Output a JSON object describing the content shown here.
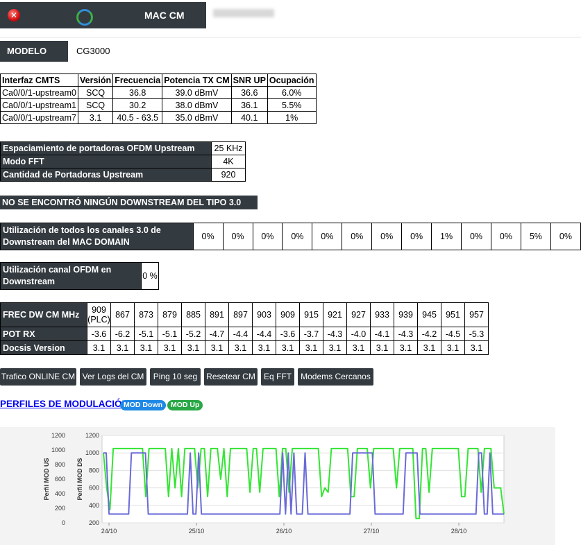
{
  "header": {
    "title": "MAC CM",
    "mac_value": ""
  },
  "modelo": {
    "label": "MODELO",
    "value": "CG3000"
  },
  "cmts_table": {
    "headers": [
      "Interfaz CMTS",
      "Versión",
      "Frecuencia",
      "Potencia TX CM",
      "SNR UP",
      "Ocupación"
    ],
    "rows": [
      [
        "Ca0/0/1-upstream0",
        "SCQ",
        "36.8",
        "39.0 dBmV",
        "36.6",
        "6.0%"
      ],
      [
        "Ca0/0/1-upstream1",
        "SCQ",
        "30.2",
        "38.0 dBmV",
        "36.1",
        "5.5%"
      ],
      [
        "Ca0/0/1-upstream7",
        "3.1",
        "40.5 - 63.5",
        "35.0 dBmV",
        "40.1",
        "1%"
      ]
    ]
  },
  "ofdm_upstream": [
    {
      "label": "Espaciamiento de portadoras OFDM Upstream",
      "value": "25 KHz"
    },
    {
      "label": "Modo FFT",
      "value": "4K"
    },
    {
      "label": "Cantidad de Portadoras Upstream",
      "value": "920"
    }
  ],
  "no_downstream_msg": "NO SE ENCONTRÓ NINGÚN DOWNSTREAM DEL TIPO 3.0",
  "util_ds30": {
    "label_line1": "Utilización de todos los canales 3.0 de",
    "label_line2": "Downstream del MAC DOMAIN",
    "values": [
      "0%",
      "0%",
      "0%",
      "0%",
      "0%",
      "0%",
      "0%",
      "0%",
      "1%",
      "0%",
      "0%",
      "5%",
      "0%"
    ]
  },
  "util_ofdm": {
    "label_line1": "Utilización canal OFDM en",
    "label_line2": "Downstream",
    "value": "0 %"
  },
  "freq_table": {
    "frec_label": "FREC DW CM MHz",
    "pot_label": "POT RX",
    "docsis_label": "Docsis Version",
    "first_freq": "909",
    "first_freq_note": "(PLC)",
    "freqs": [
      "867",
      "873",
      "879",
      "885",
      "891",
      "897",
      "903",
      "909",
      "915",
      "921",
      "927",
      "933",
      "939",
      "945",
      "951",
      "957"
    ],
    "pot": [
      "-3.6",
      "-6.2",
      "-5.1",
      "-5.1",
      "-5.2",
      "-4.7",
      "-4.4",
      "-4.4",
      "-3.6",
      "-3.7",
      "-4.3",
      "-4.0",
      "-4.1",
      "-4.3",
      "-4.2",
      "-4.5",
      "-5.3"
    ],
    "docsis": [
      "3.1",
      "3.1",
      "3.1",
      "3.1",
      "3.1",
      "3.1",
      "3.1",
      "3.1",
      "3.1",
      "3.1",
      "3.1",
      "3.1",
      "3.1",
      "3.1",
      "3.1",
      "3.1",
      "3.1"
    ]
  },
  "buttons": [
    "Trafico ONLINE CM",
    "Ver Logs del CM",
    "Ping 10 seg",
    "Resetear CM",
    "Eq FFT",
    "Modems Cercanos"
  ],
  "perfiles": {
    "title": "PERFILES DE MODULACIÓN",
    "badge_down": "MOD Down",
    "badge_up": "MOD Up"
  },
  "colors": {
    "dark": "#333a40",
    "mod_down": "#1e88e5",
    "mod_up": "#28a745",
    "line_up": "#33e533",
    "line_down": "#6a6ad8"
  },
  "chart_data": {
    "type": "line",
    "ylabel_left": "Perfil MOD US",
    "ylabel_right": "Perfil MOD DS",
    "yticks_left": [
      "1200",
      "1000",
      "800",
      "600",
      "400",
      "200",
      "0"
    ],
    "yticks_right": [
      "1200",
      "1000",
      "800",
      "600",
      "400",
      "200"
    ],
    "xticks": [
      "24/10",
      "25/10",
      "26/10",
      "27/10",
      "28/10"
    ],
    "ylim_left": [
      0,
      1200
    ],
    "ylim_right": [
      200,
      1200
    ],
    "x_start": "24/10",
    "x_end": "28/10",
    "grid": true,
    "series": [
      {
        "name": "MOD Up",
        "color": "#33e533",
        "values": [
          1000,
          600,
          350,
          1050,
          1050,
          1050,
          1050,
          1050,
          1050,
          1050,
          1050,
          1050,
          1050,
          500,
          1050,
          1050,
          1050,
          1050,
          1050,
          1050,
          500,
          1050,
          600,
          1050,
          500,
          1050,
          1050,
          1050,
          1050,
          600,
          1050,
          1050,
          500,
          1050,
          1050,
          1050,
          700,
          1050,
          500,
          1050,
          1050,
          1050,
          1050,
          1050,
          1050,
          550,
          1050,
          1050,
          550,
          1050,
          1050,
          1050,
          1050,
          1050,
          500,
          1050,
          1050,
          550,
          1050,
          1050,
          1050,
          1050,
          1050,
          1050,
          1050,
          1050,
          1050,
          500,
          600,
          550,
          1050,
          1050,
          1050,
          1050,
          1050,
          1050,
          500,
          500,
          1050,
          1050,
          1050,
          1050,
          600,
          1050,
          1050,
          1050,
          1050,
          1050,
          1050,
          1050,
          600,
          1050,
          1050,
          1050,
          1050,
          1050,
          250,
          250,
          1050,
          1050,
          550,
          1050,
          1050,
          1050,
          1050,
          1050,
          1050,
          1050,
          1050,
          1050,
          500,
          500,
          1050,
          1050,
          1050,
          1050,
          550,
          1050,
          1050,
          1050,
          600,
          600,
          600,
          300
        ]
      },
      {
        "name": "MOD Down",
        "color": "#6a6ad8",
        "values": [
          1000,
          1000,
          300,
          300,
          300,
          300,
          300,
          300,
          300,
          300,
          1000,
          1000,
          1000,
          1000,
          1000,
          1000,
          300,
          300,
          300,
          300,
          300,
          300,
          300,
          300,
          300,
          300,
          300,
          300,
          300,
          300,
          300,
          1000,
          300,
          300,
          1000,
          300,
          300,
          300,
          300,
          300,
          300,
          300,
          300,
          300,
          300,
          300,
          300,
          300,
          300,
          300,
          300,
          300,
          300,
          300,
          300,
          300,
          300,
          300,
          300,
          300,
          300,
          300,
          300,
          300,
          1000,
          300,
          1000,
          300,
          1000,
          300,
          300,
          300,
          1000,
          300,
          300,
          300,
          300,
          300,
          300,
          300,
          300,
          300,
          300,
          300,
          300,
          300,
          300,
          300,
          300,
          1000,
          1000,
          1000,
          1000,
          1000,
          1000,
          1000,
          1000,
          300,
          300,
          300,
          300,
          300,
          300,
          300,
          300,
          300,
          300,
          300,
          1000,
          1000,
          1000,
          1000,
          1000,
          300,
          300,
          300,
          300,
          300,
          300,
          300,
          300,
          300,
          300,
          300,
          300,
          300,
          300,
          300,
          300,
          300,
          300,
          300,
          300,
          300,
          1000,
          1000,
          300,
          300,
          1000,
          300,
          300,
          300,
          300,
          300
        ]
      }
    ]
  }
}
